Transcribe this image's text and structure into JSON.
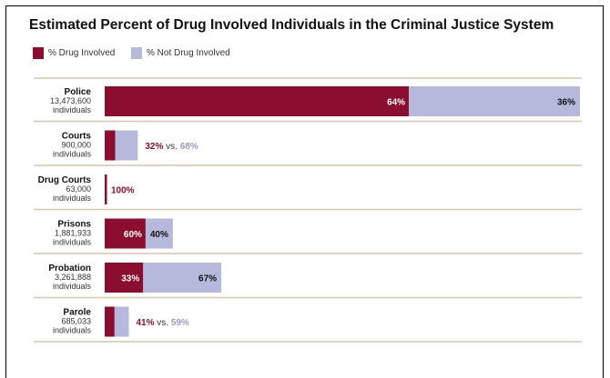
{
  "chart_data": {
    "type": "bar",
    "stacked": true,
    "orientation": "horizontal",
    "title": "Estimated Percent of Drug Involved Individuals in the Criminal Justice System",
    "legend": {
      "position": "top-left",
      "entries": [
        "% Drug Involved",
        "% Not Drug Involved"
      ]
    },
    "colors": {
      "drug": "#8b0d2f",
      "not_drug": "#b6b8dc",
      "separator": "#d6c6ab"
    },
    "categories": [
      {
        "name": "Police",
        "count": "13,473,600",
        "unit": "individuals",
        "drug": 64,
        "not_drug": 36,
        "drug_label": "64%",
        "not_drug_label": "36%",
        "label_style": "inside"
      },
      {
        "name": "Courts",
        "count": "900,000",
        "unit": "individuals",
        "drug": 32,
        "not_drug": 68,
        "drug_label": "32%",
        "not_drug_label": "68%",
        "vs_label": "vs.",
        "label_style": "outside"
      },
      {
        "name": "Drug Courts",
        "count": "63,000",
        "unit": "individuals",
        "drug": 100,
        "not_drug": 0,
        "drug_label": "100%",
        "label_style": "outside-single"
      },
      {
        "name": "Prisons",
        "count": "1,881,933",
        "unit": "individuals",
        "drug": 60,
        "not_drug": 40,
        "drug_label": "60%",
        "not_drug_label": "40%",
        "label_style": "inside"
      },
      {
        "name": "Probation",
        "count": "3,261,888",
        "unit": "individuals",
        "drug": 33,
        "not_drug": 67,
        "drug_label": "33%",
        "not_drug_label": "67%",
        "label_style": "inside"
      },
      {
        "name": "Parole",
        "count": "685,033",
        "unit": "individuals",
        "drug": 41,
        "not_drug": 59,
        "drug_label": "41%",
        "not_drug_label": "59%",
        "vs_label": "vs.",
        "label_style": "outside"
      }
    ],
    "series": [
      {
        "name": "% Drug Involved",
        "values": [
          64,
          32,
          100,
          60,
          33,
          41
        ]
      },
      {
        "name": "% Not Drug Involved",
        "values": [
          36,
          68,
          0,
          40,
          67,
          59
        ]
      }
    ]
  }
}
